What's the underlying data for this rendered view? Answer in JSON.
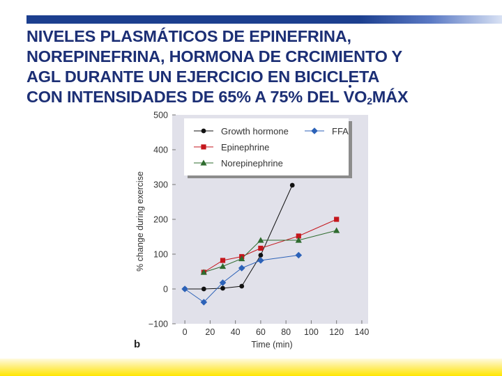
{
  "title": {
    "line1": "NIVELES PLASMÁTICOS DE EPINEFRINA,",
    "line2": "NOREPINEFRINA, HORMONA DE CRCIMIENTO Y",
    "line3": "AGL DURANTE UN EJERCICIO EN BICICLETA",
    "line4_pre": "CON INTENSIDADES DE 65% A 75% DEL ",
    "line4_v": "V",
    "line4_o": "O",
    "line4_sub": "2",
    "line4_post": "MÁX"
  },
  "colors": {
    "header_bar": "#1c3f8f",
    "title_text": "#1c2f75",
    "plot_background": "#e1e1ea",
    "legend_background": "#ffffff",
    "growth_hormone": "#111111",
    "ffa": "#2c62b8",
    "epinephrine": "#c4161c",
    "norepinephrine": "#2e6b2e",
    "footer_bar": "#ffe600"
  },
  "chart_data": {
    "type": "line",
    "panel_label": "b",
    "xlabel": "Time (min)",
    "ylabel": "% change during exercise",
    "xlim": [
      -10,
      145
    ],
    "ylim": [
      -100,
      500
    ],
    "xticks": [
      0,
      20,
      40,
      60,
      80,
      100,
      120,
      140
    ],
    "yticks": [
      -100,
      0,
      100,
      200,
      300,
      400,
      500
    ],
    "ytick_labels": [
      "−100",
      "0",
      "100",
      "200",
      "300",
      "400",
      "500"
    ],
    "grid": false,
    "legend_position": "top",
    "series": [
      {
        "name": "Growth hormone",
        "marker": "circle",
        "color": "#111111",
        "x": [
          0,
          15,
          30,
          45,
          60,
          85
        ],
        "y": [
          0,
          0,
          2,
          8,
          97,
          298
        ]
      },
      {
        "name": "FFA",
        "marker": "diamond",
        "color": "#2c62b8",
        "x": [
          0,
          15,
          30,
          45,
          60,
          90
        ],
        "y": [
          0,
          -38,
          18,
          60,
          82,
          97
        ]
      },
      {
        "name": "Epinephrine",
        "marker": "square",
        "color": "#c4161c",
        "x": [
          15,
          30,
          45,
          60,
          90,
          120
        ],
        "y": [
          48,
          82,
          93,
          117,
          152,
          200
        ]
      },
      {
        "name": "Norepinephrine",
        "marker": "triangle",
        "color": "#2e6b2e",
        "x": [
          15,
          30,
          45,
          60,
          90,
          120
        ],
        "y": [
          48,
          65,
          87,
          140,
          140,
          168
        ]
      }
    ]
  }
}
